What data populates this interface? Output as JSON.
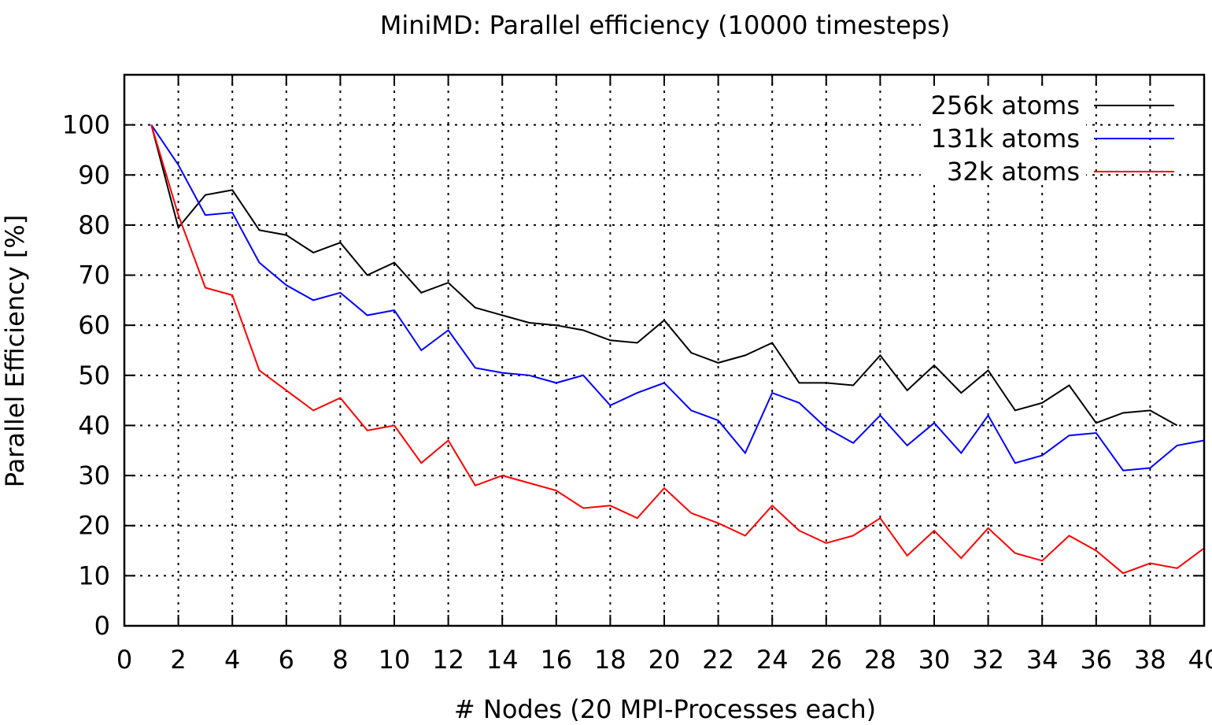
{
  "chart_data": {
    "type": "line",
    "title": "MiniMD: Parallel efficiency (10000 timesteps)",
    "xlabel": "# Nodes (20 MPI-Processes each)",
    "ylabel": "Parallel Efficiency [%]",
    "xlim": [
      0,
      40
    ],
    "ylim": [
      0,
      110
    ],
    "xticks": [
      0,
      2,
      4,
      6,
      8,
      10,
      12,
      14,
      16,
      18,
      20,
      22,
      24,
      26,
      28,
      30,
      32,
      34,
      36,
      38,
      40
    ],
    "yticks": [
      0,
      10,
      20,
      30,
      40,
      50,
      60,
      70,
      80,
      90,
      100
    ],
    "grid": true,
    "legend_position": "top-right",
    "series": [
      {
        "name": "256k atoms",
        "color": "#000000",
        "x": [
          1,
          2,
          3,
          4,
          5,
          6,
          7,
          8,
          9,
          10,
          11,
          12,
          13,
          14,
          15,
          16,
          17,
          18,
          19,
          20,
          21,
          22,
          23,
          24,
          25,
          26,
          27,
          28,
          29,
          30,
          31,
          32,
          33,
          34,
          35,
          36,
          37,
          38,
          39
        ],
        "values": [
          100,
          79.5,
          86,
          87,
          79,
          78,
          74.5,
          76.5,
          70,
          72.5,
          66.5,
          68.5,
          63.5,
          62,
          60.5,
          60,
          59,
          57,
          56.5,
          61,
          54.5,
          52.5,
          54,
          56.5,
          48.5,
          48.5,
          48,
          54,
          47,
          52,
          46.5,
          51,
          43,
          44.5,
          48,
          40.5,
          42.5,
          43,
          40
        ]
      },
      {
        "name": "131k atoms",
        "color": "#0000ff",
        "x": [
          1,
          2,
          3,
          4,
          5,
          6,
          7,
          8,
          9,
          10,
          11,
          12,
          13,
          14,
          15,
          16,
          17,
          18,
          19,
          20,
          21,
          22,
          23,
          24,
          25,
          26,
          27,
          28,
          29,
          30,
          31,
          32,
          33,
          34,
          35,
          36,
          37,
          38,
          39,
          40
        ],
        "values": [
          100,
          92,
          82,
          82.5,
          72.5,
          68,
          65,
          66.5,
          62,
          63,
          55,
          59,
          51.5,
          50.5,
          50,
          48.5,
          50,
          44,
          46.5,
          48.5,
          43,
          41,
          34.5,
          46.5,
          44.5,
          39.5,
          36.5,
          42,
          36,
          40.5,
          34.5,
          42,
          32.5,
          34,
          38,
          38.5,
          31,
          31.5,
          36,
          37
        ]
      },
      {
        "name": "32k atoms",
        "color": "#ff0000",
        "x": [
          1,
          2,
          3,
          4,
          5,
          6,
          7,
          8,
          9,
          10,
          11,
          12,
          13,
          14,
          15,
          16,
          17,
          18,
          19,
          20,
          21,
          22,
          23,
          24,
          25,
          26,
          27,
          28,
          29,
          30,
          31,
          32,
          33,
          34,
          35,
          36,
          37,
          38,
          39,
          40
        ],
        "values": [
          100,
          82,
          67.5,
          66,
          51,
          47,
          43,
          45.5,
          39,
          40,
          32.5,
          37,
          28,
          30,
          28.5,
          27,
          23.5,
          24,
          21.5,
          27.5,
          22.5,
          20.5,
          18,
          24,
          19,
          16.5,
          18,
          21.5,
          14,
          19,
          13.5,
          19.5,
          14.5,
          13,
          18,
          15,
          10.5,
          12.5,
          11.5,
          15.5
        ]
      }
    ]
  }
}
